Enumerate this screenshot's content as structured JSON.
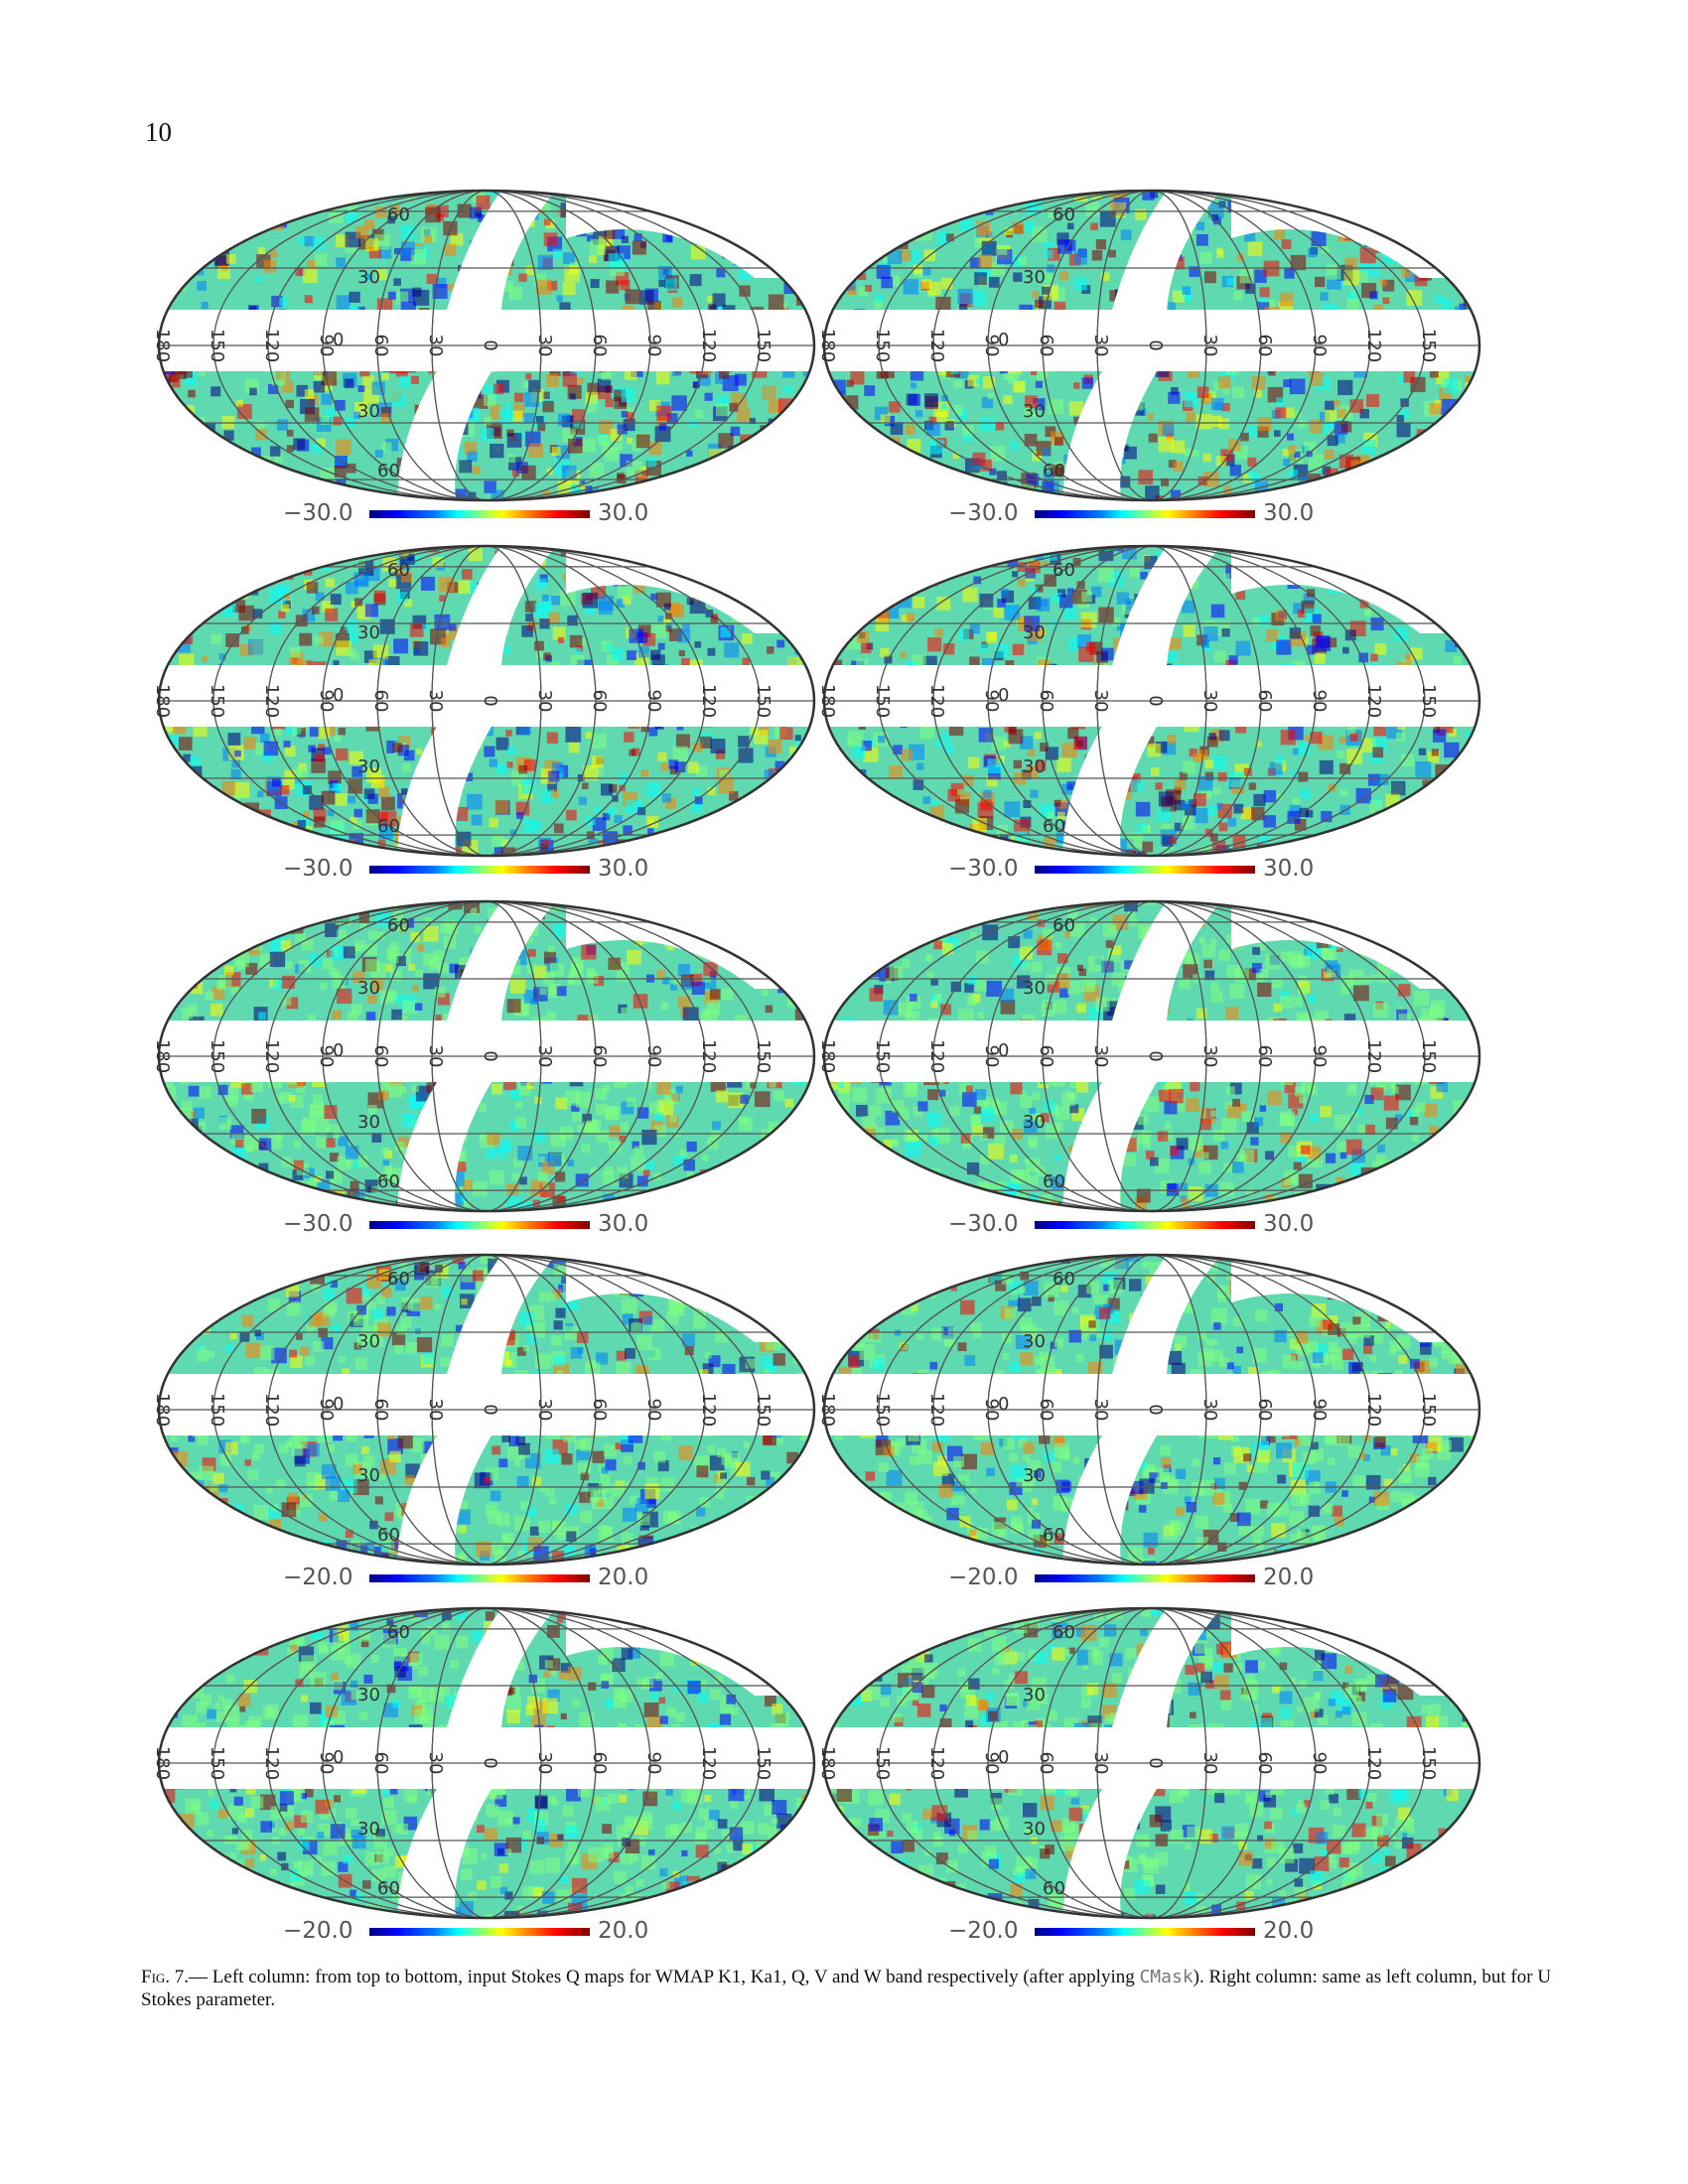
{
  "page_number": "10",
  "panels": [
    {
      "row": 0,
      "column": "left",
      "colorbar_min": "−30.0",
      "colorbar_max": "30.0"
    },
    {
      "row": 0,
      "column": "right",
      "colorbar_min": "−30.0",
      "colorbar_max": "30.0"
    },
    {
      "row": 1,
      "column": "left",
      "colorbar_min": "−30.0",
      "colorbar_max": "30.0"
    },
    {
      "row": 1,
      "column": "right",
      "colorbar_min": "−30.0",
      "colorbar_max": "30.0"
    },
    {
      "row": 2,
      "column": "left",
      "colorbar_min": "−30.0",
      "colorbar_max": "30.0"
    },
    {
      "row": 2,
      "column": "right",
      "colorbar_min": "−30.0",
      "colorbar_max": "30.0"
    },
    {
      "row": 3,
      "column": "left",
      "colorbar_min": "−20.0",
      "colorbar_max": "20.0"
    },
    {
      "row": 3,
      "column": "right",
      "colorbar_min": "−20.0",
      "colorbar_max": "20.0"
    },
    {
      "row": 4,
      "column": "left",
      "colorbar_min": "−20.0",
      "colorbar_max": "20.0"
    },
    {
      "row": 4,
      "column": "right",
      "colorbar_min": "−20.0",
      "colorbar_max": "20.0"
    }
  ],
  "map_grid_labels": {
    "longitude": [
      "180",
      "150",
      "120",
      "90",
      "60",
      "30",
      "0",
      "30",
      "60",
      "90",
      "120",
      "150"
    ],
    "latitude": [
      "60",
      "30",
      "0",
      "30",
      "60"
    ]
  },
  "colormap": [
    "#00007f",
    "#0000ff",
    "#007fff",
    "#00ffff",
    "#7fff7f",
    "#ffff00",
    "#ff7f00",
    "#ff0000",
    "#7f0000"
  ],
  "caption": {
    "label": "Fig. 7.",
    "separator": "— ",
    "text_before": "Left column: from top to bottom, input Stokes Q maps for WMAP K1, Ka1, Q, V and W band respectively (after applying ",
    "code": "CMask",
    "text_after": "). Right column: same as left column, but for U Stokes parameter."
  }
}
